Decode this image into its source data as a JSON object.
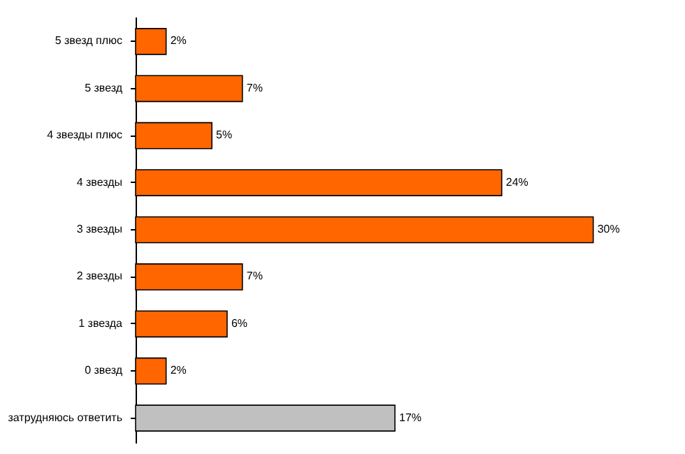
{
  "chart_data": {
    "type": "bar",
    "orientation": "horizontal",
    "categories": [
      "5 звезд плюс",
      "5 звезд",
      "4 звезды плюс",
      "4 звезды",
      "3 звезды",
      "2 звезды",
      "1 звезда",
      "0 звезд",
      "затрудняюсь ответить"
    ],
    "values": [
      2,
      7,
      5,
      24,
      30,
      7,
      6,
      2,
      17
    ],
    "colors": [
      "#ff6600",
      "#ff6600",
      "#ff6600",
      "#ff6600",
      "#ff6600",
      "#ff6600",
      "#ff6600",
      "#ff6600",
      "#c0c0c0"
    ],
    "value_labels": [
      "2%",
      "7%",
      "5%",
      "24%",
      "30%",
      "7%",
      "6%",
      "2%",
      "17%"
    ]
  }
}
